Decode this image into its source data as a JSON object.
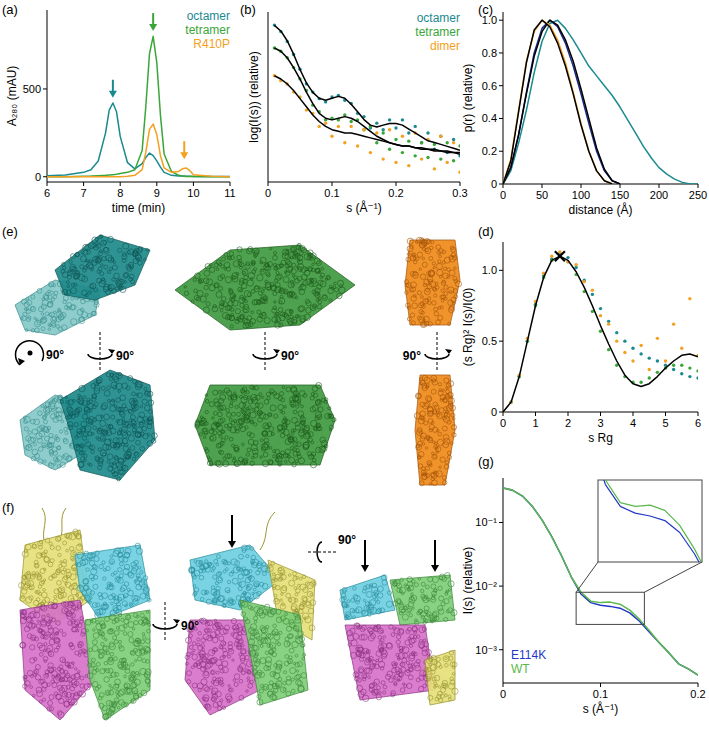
{
  "chart_data": [
    {
      "type": "line",
      "title": "(a)",
      "xlabel": "time (min)",
      "ylabel": "A₂₈₀ (mAU)",
      "x": [
        6,
        6.5,
        7,
        7.2,
        7.4,
        7.6,
        7.7,
        7.8,
        7.9,
        8,
        8.2,
        8.4,
        8.6,
        8.7,
        8.8,
        8.9,
        9,
        9.1,
        9.2,
        9.4,
        9.6,
        9.7,
        9.8,
        9.9,
        10,
        10.5,
        11
      ],
      "xlim": [
        6,
        11
      ],
      "xticks": [
        6,
        7,
        8,
        9,
        10,
        11
      ],
      "ylim": [
        -30,
        950
      ],
      "yticks": [
        0,
        500
      ],
      "grid": false,
      "legend": "upper right",
      "series": [
        {
          "name": "octamer",
          "color": "#1b8a8f",
          "values": [
            5,
            10,
            25,
            40,
            90,
            250,
            380,
            420,
            370,
            230,
            80,
            45,
            75,
            110,
            135,
            120,
            90,
            55,
            25,
            8,
            4,
            4,
            3,
            3,
            2,
            2,
            2
          ]
        },
        {
          "name": "tetramer",
          "color": "#3aa63a",
          "values": [
            0,
            0,
            3,
            4,
            6,
            8,
            10,
            12,
            14,
            18,
            25,
            40,
            150,
            400,
            700,
            800,
            650,
            350,
            130,
            30,
            8,
            4,
            2,
            1,
            1,
            0,
            0
          ]
        },
        {
          "name": "R410P",
          "color": "#f4a020",
          "values": [
            0,
            0,
            0,
            0,
            0,
            0,
            0,
            0,
            0,
            0,
            3,
            8,
            40,
            140,
            270,
            300,
            240,
            120,
            50,
            25,
            30,
            45,
            50,
            35,
            12,
            3,
            0
          ]
        }
      ],
      "arrows": [
        {
          "x": 7.8,
          "y": 450,
          "color": "#1b8a8f"
        },
        {
          "x": 8.9,
          "y": 830,
          "color": "#3aa63a"
        },
        {
          "x": 9.75,
          "y": 100,
          "color": "#f4a020"
        }
      ]
    },
    {
      "type": "scatter",
      "title": "(b)",
      "xlabel": "s (Å⁻¹)",
      "ylabel": "log(I(s)) (relative)",
      "x": [
        0.01,
        0.02,
        0.03,
        0.04,
        0.05,
        0.06,
        0.07,
        0.08,
        0.09,
        0.1,
        0.11,
        0.12,
        0.13,
        0.14,
        0.15,
        0.16,
        0.17,
        0.18,
        0.19,
        0.2,
        0.21,
        0.22,
        0.23,
        0.24,
        0.25,
        0.26,
        0.27,
        0.28,
        0.29,
        0.3
      ],
      "xlim": [
        0,
        0.3
      ],
      "xticks": [
        0,
        0.1,
        0.2,
        0.3
      ],
      "ylim": [
        -5,
        0.2
      ],
      "tick_labels": "x",
      "grid": false,
      "legend": "upper right",
      "series": [
        {
          "name": "octamer",
          "color": "#1b8a8f",
          "values": [
            -0.2,
            -0.4,
            -0.7,
            -1.1,
            -1.55,
            -2.0,
            -2.25,
            -2.45,
            -2.55,
            -2.4,
            -2.35,
            -2.5,
            -2.6,
            -2.9,
            -3.0,
            -3.35,
            -3.2,
            -3.4,
            -3.1,
            -3.35,
            -3.1,
            -3.5,
            -3.3,
            -3.8,
            -3.5,
            -4.0,
            -3.6,
            -4.1,
            -3.7,
            -4.2
          ]
        },
        {
          "name": "tetramer",
          "color": "#3aa63a",
          "values": [
            -0.9,
            -1.0,
            -1.2,
            -1.5,
            -1.85,
            -2.2,
            -2.65,
            -2.85,
            -3.1,
            -3.05,
            -3.1,
            -2.95,
            -3.15,
            -3.1,
            -3.4,
            -3.3,
            -3.8,
            -3.5,
            -4.0,
            -3.7,
            -4.1,
            -3.75,
            -4.2,
            -3.8,
            -4.25,
            -3.85,
            -4.3,
            -3.8,
            -4.35,
            -3.9
          ]
        },
        {
          "name": "dimer",
          "color": "#f4a020",
          "values": [
            -1.75,
            -1.9,
            -2.0,
            -2.25,
            -2.4,
            -2.8,
            -2.9,
            -3.3,
            -3.2,
            -3.6,
            -3.3,
            -3.8,
            -3.3,
            -3.9,
            -3.4,
            -4.1,
            -3.5,
            -4.3,
            -3.4,
            -4.4,
            -3.6,
            -4.5,
            -3.5,
            -4.3,
            -3.7,
            -4.6,
            -3.6,
            -4.4,
            -3.8,
            -4.7
          ]
        },
        {
          "type": "line",
          "color": "#000000",
          "values": [
            -0.21,
            -0.38,
            -0.68,
            -1.09,
            -1.56,
            -1.97,
            -2.26,
            -2.44,
            -2.5,
            -2.44,
            -2.38,
            -2.44,
            -2.62,
            -2.85,
            -3.09,
            -3.26,
            -3.32,
            -3.26,
            -3.21,
            -3.21,
            -3.26,
            -3.38,
            -3.5,
            -3.62,
            -3.74,
            -3.79,
            -3.85,
            -3.91,
            -3.97,
            -4.03
          ]
        },
        {
          "type": "line",
          "color": "#000000",
          "values": [
            -0.9,
            -1.0,
            -1.2,
            -1.5,
            -1.85,
            -2.25,
            -2.6,
            -2.9,
            -3.05,
            -3.1,
            -3.05,
            -3.0,
            -3.05,
            -3.15,
            -3.3,
            -3.45,
            -3.6,
            -3.7,
            -3.8,
            -3.85,
            -3.9,
            -3.9,
            -3.95,
            -3.95,
            -4.0,
            -4.0,
            -4.05,
            -4.05,
            -4.1,
            -4.1
          ]
        },
        {
          "type": "line",
          "color": "#000000",
          "values": [
            -1.75,
            -1.85,
            -2.0,
            -2.2,
            -2.45,
            -2.7,
            -2.95,
            -3.15,
            -3.3,
            -3.4,
            -3.45,
            -3.5,
            -3.5,
            -3.55,
            -3.6,
            -3.65,
            -3.7,
            -3.75,
            -3.8,
            -3.85,
            -3.9,
            -3.9,
            -3.95,
            -4.0,
            -4.0,
            -4.05,
            -4.05,
            -4.1,
            -4.1,
            -4.15
          ]
        }
      ]
    },
    {
      "type": "line",
      "title": "(c)",
      "xlabel": "distance (Å)",
      "ylabel": "p(r) (relative)",
      "x": [
        0,
        10,
        20,
        30,
        40,
        50,
        60,
        70,
        80,
        90,
        100,
        110,
        120,
        130,
        140,
        150,
        160,
        170,
        180,
        190,
        200,
        210,
        220,
        230,
        240,
        250
      ],
      "xlim": [
        0,
        250
      ],
      "xticks": [
        0,
        50,
        100,
        150,
        200,
        250
      ],
      "ylim": [
        0,
        1.05
      ],
      "yticks": [
        0,
        0.2,
        0.4,
        0.6,
        0.8,
        {
          "value": 1,
          "label": "1.0"
        }
      ],
      "grid": false,
      "series": [
        {
          "color": "#1b8a8f",
          "values": [
            0,
            0.08,
            0.25,
            0.45,
            0.68,
            0.87,
            0.98,
            1.0,
            0.95,
            0.88,
            0.8,
            0.72,
            0.66,
            0.6,
            0.54,
            0.47,
            0.39,
            0.31,
            0.23,
            0.16,
            0.1,
            0.06,
            0.03,
            0.01,
            0,
            0
          ]
        },
        {
          "color": "#1c2a8c",
          "values": [
            0,
            0.1,
            0.3,
            0.56,
            0.8,
            0.95,
            1.0,
            0.96,
            0.86,
            0.72,
            0.55,
            0.37,
            0.2,
            0.08,
            0.02,
            0,
            null,
            null,
            null,
            null,
            null,
            null,
            null,
            null,
            null,
            null
          ]
        },
        {
          "color": "#000000",
          "values": [
            0,
            0.1,
            0.3,
            0.55,
            0.78,
            0.93,
            1.0,
            0.97,
            0.88,
            0.75,
            0.58,
            0.4,
            0.22,
            0.09,
            0.02,
            0,
            null,
            null,
            null,
            null,
            null,
            null,
            null,
            null,
            null,
            null
          ]
        },
        {
          "color": "#f4a020",
          "values": [
            0,
            0.15,
            0.45,
            0.75,
            0.93,
            1.0,
            0.97,
            0.88,
            0.74,
            0.56,
            0.37,
            0.2,
            0.08,
            0.02,
            0,
            null,
            null,
            null,
            null,
            null,
            null,
            null,
            null,
            null,
            null,
            null
          ]
        },
        {
          "color": "#000000",
          "values": [
            0,
            0.14,
            0.44,
            0.74,
            0.94,
            1.0,
            0.96,
            0.86,
            0.72,
            0.55,
            0.36,
            0.2,
            0.08,
            0.02,
            0,
            null,
            null,
            null,
            null,
            null,
            null,
            null,
            null,
            null,
            null,
            null
          ]
        }
      ]
    },
    {
      "type": "scatter",
      "title": "(d)",
      "xlabel": "s Rg",
      "ylabel": "(s Rg)² I(s)/I(0)",
      "x": [
        0,
        0.25,
        0.5,
        0.75,
        1,
        1.25,
        1.5,
        1.75,
        2,
        2.25,
        2.5,
        2.75,
        3,
        3.25,
        3.5,
        3.75,
        4,
        4.25,
        4.5,
        4.75,
        5,
        5.25,
        5.5,
        5.75,
        6
      ],
      "xlim": [
        0,
        6
      ],
      "xticks": [
        0,
        1,
        2,
        3,
        4,
        5,
        6
      ],
      "ylim": [
        0,
        1.2
      ],
      "yticks": [
        0,
        0.5,
        {
          "value": 1,
          "label": "1.0"
        }
      ],
      "grid": false,
      "series": [
        {
          "color": "#1b8a8f",
          "values": [
            0,
            0.07,
            0.25,
            0.5,
            0.76,
            0.96,
            1.08,
            1.12,
            1.09,
            1.02,
            0.93,
            0.83,
            0.73,
            0.64,
            0.56,
            0.5,
            0.45,
            0.41,
            0.38,
            0.36,
            0.33,
            0.3,
            0.27,
            0.25,
            0.24
          ]
        },
        {
          "color": "#3aa63a",
          "values": [
            0,
            0.07,
            0.25,
            0.5,
            0.75,
            0.95,
            1.07,
            1.1,
            1.06,
            0.97,
            0.85,
            0.71,
            0.57,
            0.44,
            0.33,
            0.25,
            0.21,
            0.21,
            0.24,
            0.28,
            0.31,
            0.33,
            0.33,
            0.31,
            0.29
          ]
        },
        {
          "color": "#f4a020",
          "values": [
            0,
            0.07,
            0.26,
            0.52,
            0.78,
            0.98,
            1.1,
            1.13,
            1.06,
            1.04,
            0.92,
            0.86,
            0.68,
            0.62,
            0.5,
            0.42,
            0.36,
            0.47,
            0.3,
            0.52,
            0.36,
            0.62,
            0.45,
            0.8,
            0.4
          ]
        },
        {
          "type": "line",
          "color": "#000000",
          "values": [
            0,
            0.07,
            0.25,
            0.5,
            0.75,
            0.95,
            1.07,
            1.1,
            1.07,
            0.99,
            0.88,
            0.75,
            0.61,
            0.48,
            0.36,
            0.26,
            0.2,
            0.18,
            0.2,
            0.25,
            0.31,
            0.36,
            0.4,
            0.41,
            0.39
          ]
        }
      ],
      "marker_point": {
        "x": 1.75,
        "y": 1.1
      }
    },
    {
      "type": "line",
      "title": "(g)",
      "xlabel": "s (Å⁻¹)",
      "ylabel": "I(s) (relative)",
      "log": "y",
      "x": [
        0,
        0.01,
        0.02,
        0.03,
        0.04,
        0.05,
        0.06,
        0.07,
        0.08,
        0.09,
        0.1,
        0.11,
        0.12,
        0.13,
        0.14,
        0.15,
        0.16,
        0.17,
        0.18,
        0.19,
        0.2
      ],
      "xlim": [
        0,
        0.2
      ],
      "xticks": [
        0,
        0.1,
        0.2
      ],
      "ylim": [
        0.0003,
        0.5
      ],
      "yticks": [
        {
          "value": 0.1,
          "label": "10⁻¹"
        },
        {
          "value": 0.01,
          "label": "10⁻²"
        },
        {
          "value": 0.001,
          "label": "10⁻³"
        }
      ],
      "grid": false,
      "legend": "lower left",
      "series": [
        {
          "name": "E114K",
          "color": "#2438c8",
          "values": [
            0.35,
            0.32,
            0.26,
            0.18,
            0.11,
            0.06,
            0.03,
            0.014,
            0.0075,
            0.0055,
            0.005,
            0.0048,
            0.0045,
            0.0038,
            0.0028,
            0.0019,
            0.0013,
            0.0009,
            0.0006,
            0.0005,
            0.0004
          ]
        },
        {
          "name": "WT",
          "color": "#5bb84a",
          "values": [
            0.35,
            0.32,
            0.26,
            0.18,
            0.11,
            0.06,
            0.03,
            0.014,
            0.008,
            0.0058,
            0.0055,
            0.0056,
            0.0052,
            0.0042,
            0.003,
            0.002,
            0.0013,
            0.0009,
            0.0006,
            0.0005,
            0.0004
          ]
        }
      ],
      "inset": {
        "xlim": [
          0.075,
          0.145
        ],
        "ylim": [
          0.0025,
          0.008
        ]
      }
    }
  ],
  "diagrams": [
    {
      "title": "(e)",
      "labels": [
        "90°",
        "90°",
        "90°",
        "90°"
      ]
    },
    {
      "title": "(f)",
      "labels": [
        "90°",
        "90°"
      ]
    }
  ]
}
